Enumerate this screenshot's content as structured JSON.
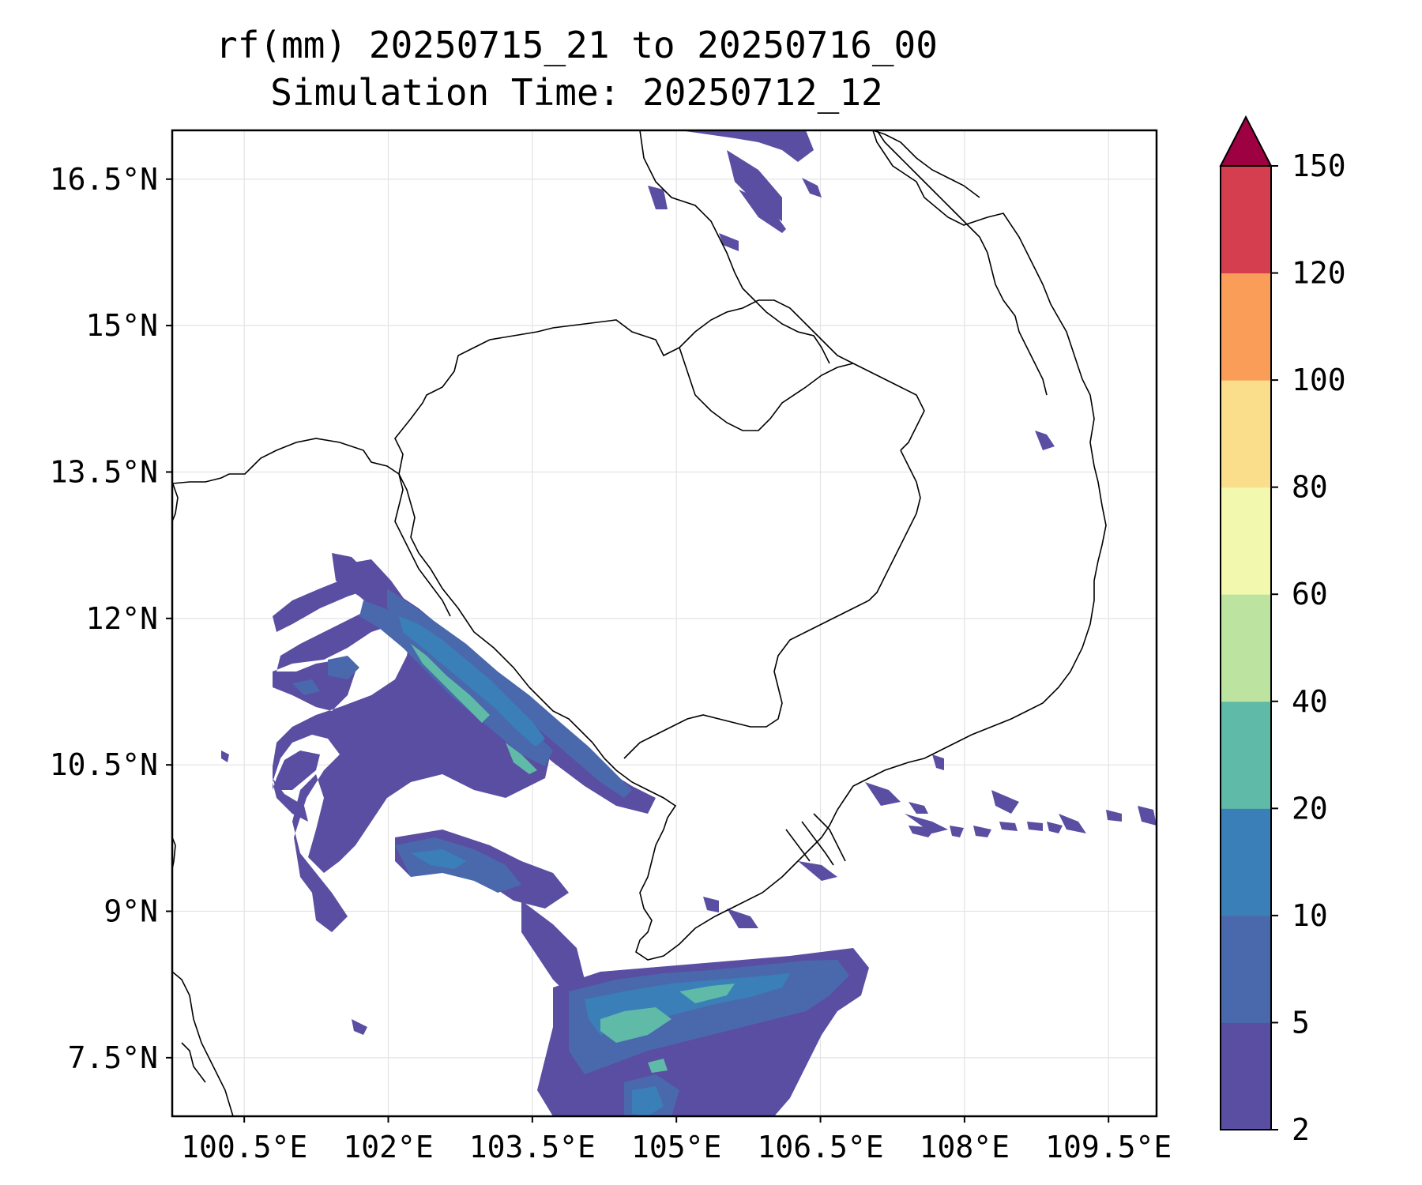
{
  "map": {
    "title": "rf(mm) 20250715_21 to 20250716_00",
    "subtitle": "Simulation Time: 20250712_12",
    "lon_range": [
      99.75,
      110.0
    ],
    "lat_range": [
      6.9,
      17.0
    ],
    "x_ticks": [
      {
        "value": 100.5,
        "label": "100.5°E"
      },
      {
        "value": 102.0,
        "label": "102°E"
      },
      {
        "value": 103.5,
        "label": "103.5°E"
      },
      {
        "value": 105.0,
        "label": "105°E"
      },
      {
        "value": 106.5,
        "label": "106.5°E"
      },
      {
        "value": 108.0,
        "label": "108°E"
      },
      {
        "value": 109.5,
        "label": "109.5°E"
      }
    ],
    "y_ticks": [
      {
        "value": 16.5,
        "label": "16.5°N"
      },
      {
        "value": 15.0,
        "label": "15°N"
      },
      {
        "value": 13.5,
        "label": "13.5°N"
      },
      {
        "value": 12.0,
        "label": "12°N"
      },
      {
        "value": 10.5,
        "label": "10.5°N"
      },
      {
        "value": 9.0,
        "label": "9°N"
      },
      {
        "value": 7.5,
        "label": "7.5°N"
      }
    ],
    "grid": true
  },
  "colorbar": {
    "levels": [
      "2",
      "5",
      "10",
      "20",
      "40",
      "60",
      "80",
      "100",
      "120",
      "150"
    ],
    "colors": [
      "#5a4ea2",
      "#4a69ad",
      "#3a7fb8",
      "#5fbaa8",
      "#bde3a0",
      "#f2f8ad",
      "#fbde8b",
      "#f99d59",
      "#d53e4f"
    ],
    "extend_color": "#9e0142",
    "extend": "max"
  }
}
